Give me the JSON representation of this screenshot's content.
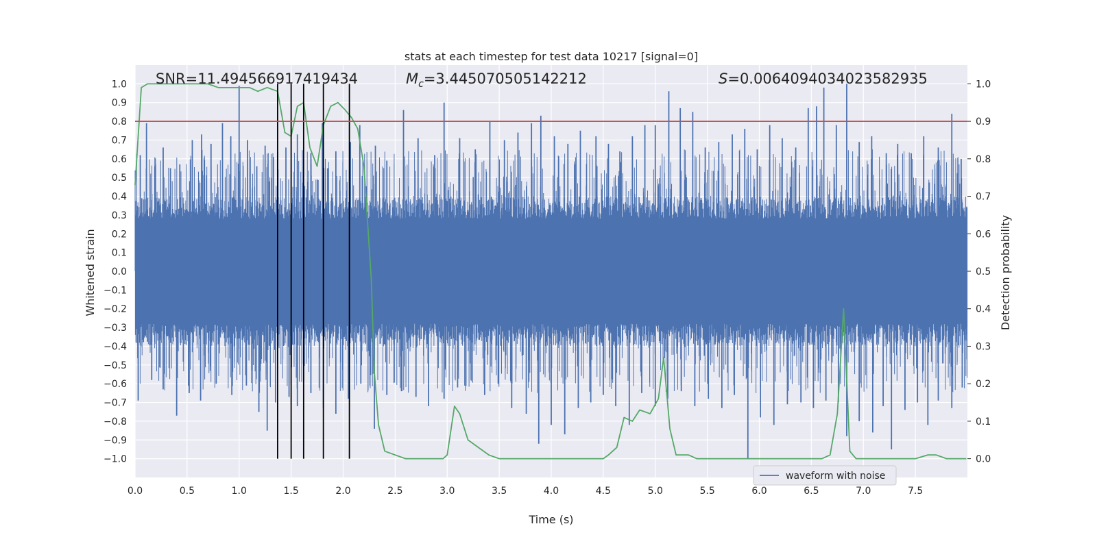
{
  "chart_data": {
    "type": "line",
    "title": "stats at each timestep for test data 10217 [signal=0]",
    "xlabel": "Time (s)",
    "ylabel": "Whitened strain",
    "y2label": "Detection probability",
    "xlim": [
      0.0,
      8.0
    ],
    "ylim": [
      -1.1,
      1.1
    ],
    "y2lim": [
      -0.05,
      1.05
    ],
    "x_ticks": [
      0.0,
      0.5,
      1.0,
      1.5,
      2.0,
      2.5,
      3.0,
      3.5,
      4.0,
      4.5,
      5.0,
      5.5,
      6.0,
      6.5,
      7.0,
      7.5
    ],
    "x_tick_labels": [
      "0.0",
      "0.5",
      "1.0",
      "1.5",
      "2.0",
      "2.5",
      "3.0",
      "3.5",
      "4.0",
      "4.5",
      "5.0",
      "5.5",
      "6.0",
      "6.5",
      "7.0",
      "7.5"
    ],
    "y_ticks": [
      1.0,
      0.9,
      0.8,
      0.7,
      0.6,
      0.5,
      0.4,
      0.3,
      0.2,
      0.1,
      0.0,
      -0.1,
      -0.2,
      -0.3,
      -0.4,
      -0.5,
      -0.6,
      -0.7,
      -0.8,
      -0.9,
      -1.0
    ],
    "y_tick_labels": [
      "1.0",
      "0.9",
      "0.8",
      "0.7",
      "0.6",
      "0.5",
      "0.4",
      "0.3",
      "0.2",
      "0.1",
      "0.0",
      "−0.1",
      "−0.2",
      "−0.3",
      "−0.4",
      "−0.5",
      "−0.6",
      "−0.7",
      "−0.8",
      "−0.9",
      "−1.0"
    ],
    "y2_ticks": [
      1.0,
      0.9,
      0.8,
      0.7,
      0.6,
      0.5,
      0.4,
      0.3,
      0.2,
      0.1,
      0.0
    ],
    "y2_tick_labels": [
      "1.0",
      "0.9",
      "0.8",
      "0.7",
      "0.6",
      "0.5",
      "0.4",
      "0.3",
      "0.2",
      "0.1",
      "0.0"
    ],
    "annotations": {
      "snr": "SNR=11.494566917419434",
      "mc_symbol": "M",
      "mc_subscript": "c",
      "mc_value": "=3.445070505142212",
      "s_symbol": "S",
      "s_value": "=0.0064094034023582935"
    },
    "threshold": {
      "value": 0.8,
      "color": "#c44e52"
    },
    "vertical_markers": [
      1.37,
      1.5,
      1.62,
      1.81,
      2.06
    ],
    "series": [
      {
        "name": "waveform with noise",
        "axis": "left",
        "color": "#4c72b0",
        "core_amplitude": 0.4,
        "spike_peaks_positive": [
          {
            "t": 0.05,
            "v": 0.62
          },
          {
            "t": 0.11,
            "v": 0.79
          },
          {
            "t": 0.19,
            "v": 0.56
          },
          {
            "t": 0.27,
            "v": 0.66
          },
          {
            "t": 0.34,
            "v": 0.55
          },
          {
            "t": 0.43,
            "v": 0.57
          },
          {
            "t": 0.55,
            "v": 0.7
          },
          {
            "t": 0.64,
            "v": 0.73
          },
          {
            "t": 0.73,
            "v": 0.68
          },
          {
            "t": 0.84,
            "v": 0.79
          },
          {
            "t": 0.92,
            "v": 0.72
          },
          {
            "t": 1.0,
            "v": 0.99
          },
          {
            "t": 1.08,
            "v": 0.7
          },
          {
            "t": 1.17,
            "v": 0.56
          },
          {
            "t": 1.25,
            "v": 0.67
          },
          {
            "t": 1.33,
            "v": 0.61
          },
          {
            "t": 1.45,
            "v": 0.66
          },
          {
            "t": 1.56,
            "v": 0.73
          },
          {
            "t": 1.69,
            "v": 0.63
          },
          {
            "t": 1.8,
            "v": 0.79
          },
          {
            "t": 1.93,
            "v": 0.64
          },
          {
            "t": 2.07,
            "v": 0.69
          },
          {
            "t": 2.16,
            "v": 0.78
          },
          {
            "t": 2.31,
            "v": 0.67
          },
          {
            "t": 2.42,
            "v": 0.59
          },
          {
            "t": 2.58,
            "v": 0.86
          },
          {
            "t": 2.72,
            "v": 0.71
          },
          {
            "t": 2.88,
            "v": 0.62
          },
          {
            "t": 2.97,
            "v": 0.9
          },
          {
            "t": 3.12,
            "v": 0.71
          },
          {
            "t": 3.27,
            "v": 0.65
          },
          {
            "t": 3.41,
            "v": 0.8
          },
          {
            "t": 3.55,
            "v": 0.7
          },
          {
            "t": 3.68,
            "v": 0.74
          },
          {
            "t": 3.81,
            "v": 0.79
          },
          {
            "t": 3.9,
            "v": 0.83
          },
          {
            "t": 4.03,
            "v": 0.72
          },
          {
            "t": 4.16,
            "v": 0.68
          },
          {
            "t": 4.28,
            "v": 0.75
          },
          {
            "t": 4.43,
            "v": 0.72
          },
          {
            "t": 4.55,
            "v": 0.68
          },
          {
            "t": 4.66,
            "v": 0.64
          },
          {
            "t": 4.78,
            "v": 0.72
          },
          {
            "t": 4.9,
            "v": 0.78
          },
          {
            "t": 5.0,
            "v": 0.78
          },
          {
            "t": 5.13,
            "v": 0.96
          },
          {
            "t": 5.24,
            "v": 0.87
          },
          {
            "t": 5.36,
            "v": 0.85
          },
          {
            "t": 5.48,
            "v": 0.66
          },
          {
            "t": 5.61,
            "v": 0.69
          },
          {
            "t": 5.74,
            "v": 0.73
          },
          {
            "t": 5.86,
            "v": 0.76
          },
          {
            "t": 5.98,
            "v": 0.65
          },
          {
            "t": 6.1,
            "v": 0.78
          },
          {
            "t": 6.22,
            "v": 0.71
          },
          {
            "t": 6.35,
            "v": 0.66
          },
          {
            "t": 6.47,
            "v": 0.87
          },
          {
            "t": 6.55,
            "v": 0.88
          },
          {
            "t": 6.62,
            "v": 0.98
          },
          {
            "t": 6.74,
            "v": 0.78
          },
          {
            "t": 6.84,
            "v": 1.0
          },
          {
            "t": 6.96,
            "v": 0.69
          },
          {
            "t": 7.08,
            "v": 0.72
          },
          {
            "t": 7.22,
            "v": 0.63
          },
          {
            "t": 7.33,
            "v": 0.68
          },
          {
            "t": 7.46,
            "v": 0.63
          },
          {
            "t": 7.58,
            "v": 0.72
          },
          {
            "t": 7.72,
            "v": 0.66
          },
          {
            "t": 7.85,
            "v": 0.84
          },
          {
            "t": 7.94,
            "v": 0.6
          }
        ],
        "spike_peaks_negative": [
          {
            "t": 0.03,
            "v": -0.69
          },
          {
            "t": 0.16,
            "v": -0.58
          },
          {
            "t": 0.27,
            "v": -0.63
          },
          {
            "t": 0.4,
            "v": -0.77
          },
          {
            "t": 0.52,
            "v": -0.65
          },
          {
            "t": 0.63,
            "v": -0.69
          },
          {
            "t": 0.78,
            "v": -0.6
          },
          {
            "t": 0.93,
            "v": -0.66
          },
          {
            "t": 1.07,
            "v": -0.61
          },
          {
            "t": 1.19,
            "v": -0.75
          },
          {
            "t": 1.27,
            "v": -0.85
          },
          {
            "t": 1.35,
            "v": -0.7
          },
          {
            "t": 1.48,
            "v": -0.67
          },
          {
            "t": 1.56,
            "v": -0.72
          },
          {
            "t": 1.69,
            "v": -0.65
          },
          {
            "t": 1.81,
            "v": -0.73
          },
          {
            "t": 1.93,
            "v": -0.76
          },
          {
            "t": 2.05,
            "v": -0.68
          },
          {
            "t": 2.17,
            "v": -0.6
          },
          {
            "t": 2.3,
            "v": -0.84
          },
          {
            "t": 2.42,
            "v": -0.66
          },
          {
            "t": 2.56,
            "v": -0.64
          },
          {
            "t": 2.7,
            "v": -0.67
          },
          {
            "t": 2.82,
            "v": -0.72
          },
          {
            "t": 2.97,
            "v": -0.68
          },
          {
            "t": 3.1,
            "v": -0.62
          },
          {
            "t": 3.23,
            "v": -0.58
          },
          {
            "t": 3.36,
            "v": -0.66
          },
          {
            "t": 3.49,
            "v": -0.6
          },
          {
            "t": 3.62,
            "v": -0.73
          },
          {
            "t": 3.76,
            "v": -0.76
          },
          {
            "t": 3.88,
            "v": -0.92
          },
          {
            "t": 4.0,
            "v": -0.82
          },
          {
            "t": 4.13,
            "v": -0.87
          },
          {
            "t": 4.26,
            "v": -0.73
          },
          {
            "t": 4.38,
            "v": -0.7
          },
          {
            "t": 4.5,
            "v": -0.66
          },
          {
            "t": 4.62,
            "v": -0.72
          },
          {
            "t": 4.75,
            "v": -0.82
          },
          {
            "t": 4.87,
            "v": -0.65
          },
          {
            "t": 5.0,
            "v": -0.72
          },
          {
            "t": 5.12,
            "v": -0.68
          },
          {
            "t": 5.25,
            "v": -0.64
          },
          {
            "t": 5.38,
            "v": -0.72
          },
          {
            "t": 5.51,
            "v": -0.68
          },
          {
            "t": 5.64,
            "v": -0.73
          },
          {
            "t": 5.76,
            "v": -0.66
          },
          {
            "t": 5.89,
            "v": -1.0
          },
          {
            "t": 6.01,
            "v": -0.78
          },
          {
            "t": 6.14,
            "v": -0.82
          },
          {
            "t": 6.27,
            "v": -0.71
          },
          {
            "t": 6.4,
            "v": -0.7
          },
          {
            "t": 6.52,
            "v": -0.73
          },
          {
            "t": 6.64,
            "v": -0.69
          },
          {
            "t": 6.76,
            "v": -0.7
          },
          {
            "t": 6.84,
            "v": -0.88
          },
          {
            "t": 6.96,
            "v": -0.8
          },
          {
            "t": 7.09,
            "v": -0.86
          },
          {
            "t": 7.19,
            "v": -0.72
          },
          {
            "t": 7.27,
            "v": -0.95
          },
          {
            "t": 7.4,
            "v": -0.74
          },
          {
            "t": 7.52,
            "v": -0.7
          },
          {
            "t": 7.62,
            "v": -0.82
          },
          {
            "t": 7.72,
            "v": -0.69
          },
          {
            "t": 7.85,
            "v": -0.73
          },
          {
            "t": 7.95,
            "v": -0.62
          }
        ]
      },
      {
        "name": "Detection probability",
        "axis": "right",
        "color": "#55a868",
        "x": [
          0.0,
          0.06,
          0.12,
          0.2,
          0.3,
          0.4,
          0.5,
          0.6,
          0.7,
          0.8,
          0.9,
          1.0,
          1.1,
          1.18,
          1.27,
          1.37,
          1.44,
          1.5,
          1.56,
          1.62,
          1.68,
          1.75,
          1.81,
          1.88,
          1.95,
          2.02,
          2.08,
          2.14,
          2.2,
          2.27,
          2.3,
          2.34,
          2.4,
          2.5,
          2.6,
          2.7,
          2.8,
          2.9,
          2.96,
          3.0,
          3.07,
          3.12,
          3.2,
          3.3,
          3.4,
          3.5,
          3.6,
          3.8,
          4.0,
          4.2,
          4.5,
          4.55,
          4.63,
          4.7,
          4.78,
          4.85,
          4.95,
          5.03,
          5.08,
          5.14,
          5.2,
          5.27,
          5.32,
          5.4,
          5.6,
          5.8,
          6.0,
          6.3,
          6.6,
          6.68,
          6.75,
          6.81,
          6.87,
          6.93,
          7.0,
          7.2,
          7.5,
          7.62,
          7.7,
          7.8,
          7.99
        ],
        "values": [
          0.73,
          0.99,
          1.0,
          1.0,
          1.0,
          1.0,
          1.0,
          1.0,
          1.0,
          0.99,
          0.99,
          0.99,
          0.99,
          0.98,
          0.99,
          0.98,
          0.87,
          0.86,
          0.94,
          0.95,
          0.83,
          0.78,
          0.89,
          0.94,
          0.95,
          0.93,
          0.91,
          0.88,
          0.78,
          0.48,
          0.23,
          0.09,
          0.02,
          0.01,
          0.0,
          0.0,
          0.0,
          0.0,
          0.0,
          0.01,
          0.14,
          0.12,
          0.05,
          0.03,
          0.01,
          0.0,
          0.0,
          0.0,
          0.0,
          0.0,
          0.0,
          0.01,
          0.03,
          0.11,
          0.1,
          0.13,
          0.12,
          0.16,
          0.27,
          0.08,
          0.01,
          0.01,
          0.01,
          0.0,
          0.0,
          0.0,
          0.0,
          0.0,
          0.0,
          0.01,
          0.12,
          0.4,
          0.02,
          0.0,
          0.0,
          0.0,
          0.0,
          0.01,
          0.01,
          0.0,
          0.0
        ]
      }
    ],
    "legend": {
      "label": "waveform with noise",
      "location": "lower-right"
    },
    "grid": true
  }
}
